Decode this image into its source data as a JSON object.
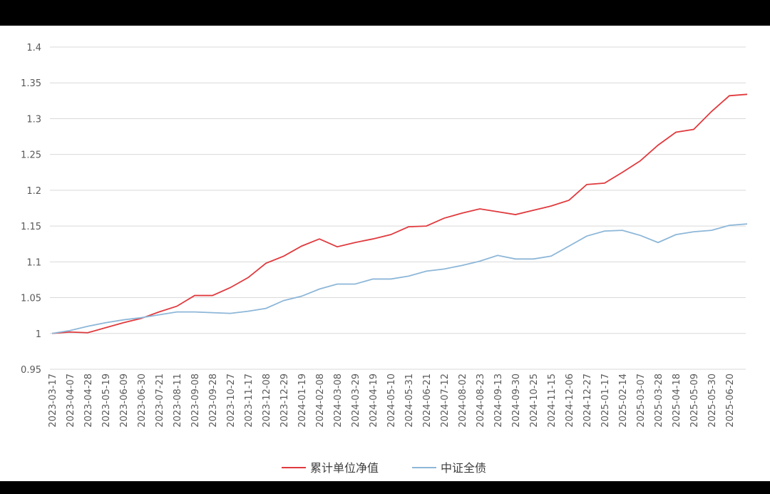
{
  "chart_data": {
    "type": "line",
    "categories": [
      "2023-03-17",
      "2023-04-07",
      "2023-04-28",
      "2023-05-19",
      "2023-06-09",
      "2023-06-30",
      "2023-07-21",
      "2023-08-11",
      "2023-09-08",
      "2023-09-28",
      "2023-10-27",
      "2023-11-17",
      "2023-12-08",
      "2023-12-29",
      "2024-01-19",
      "2024-02-08",
      "2024-03-08",
      "2024-03-29",
      "2024-04-19",
      "2024-05-10",
      "2024-05-31",
      "2024-06-21",
      "2024-07-12",
      "2024-08-02",
      "2024-08-23",
      "2024-09-13",
      "2024-09-30",
      "2024-10-25",
      "2024-11-15",
      "2024-12-06",
      "2024-12-27",
      "2025-01-17",
      "2025-02-14",
      "2025-03-07",
      "2025-03-28",
      "2025-04-18",
      "2025-05-09",
      "2025-05-30",
      "2025-06-20",
      null
    ],
    "series": [
      {
        "name": "累计单位净值",
        "color": "#e03a3e",
        "values": [
          1.0,
          1.002,
          1.001,
          1.008,
          1.015,
          1.021,
          1.03,
          1.038,
          1.053,
          1.053,
          1.064,
          1.078,
          1.098,
          1.108,
          1.122,
          1.132,
          1.121,
          1.127,
          1.132,
          1.138,
          1.149,
          1.15,
          1.161,
          1.168,
          1.174,
          1.17,
          1.166,
          1.172,
          1.178,
          1.186,
          1.208,
          1.21,
          1.225,
          1.241,
          1.263,
          1.281,
          1.285,
          1.31,
          1.332,
          1.334
        ]
      },
      {
        "name": "中证全债",
        "color": "#8db7d8",
        "values": [
          1.0,
          1.004,
          1.01,
          1.015,
          1.019,
          1.022,
          1.026,
          1.03,
          1.03,
          1.029,
          1.028,
          1.031,
          1.035,
          1.046,
          1.052,
          1.062,
          1.069,
          1.069,
          1.076,
          1.076,
          1.08,
          1.087,
          1.09,
          1.095,
          1.101,
          1.109,
          1.104,
          1.104,
          1.108,
          1.122,
          1.136,
          1.143,
          1.144,
          1.137,
          1.127,
          1.138,
          1.142,
          1.144,
          1.151,
          1.153
        ]
      }
    ],
    "ylim": [
      0.95,
      1.4
    ],
    "yticks": [
      0.95,
      1,
      1.05,
      1.1,
      1.15,
      1.2,
      1.25,
      1.3,
      1.35,
      1.4
    ],
    "grid": true,
    "legend": "bottom"
  }
}
